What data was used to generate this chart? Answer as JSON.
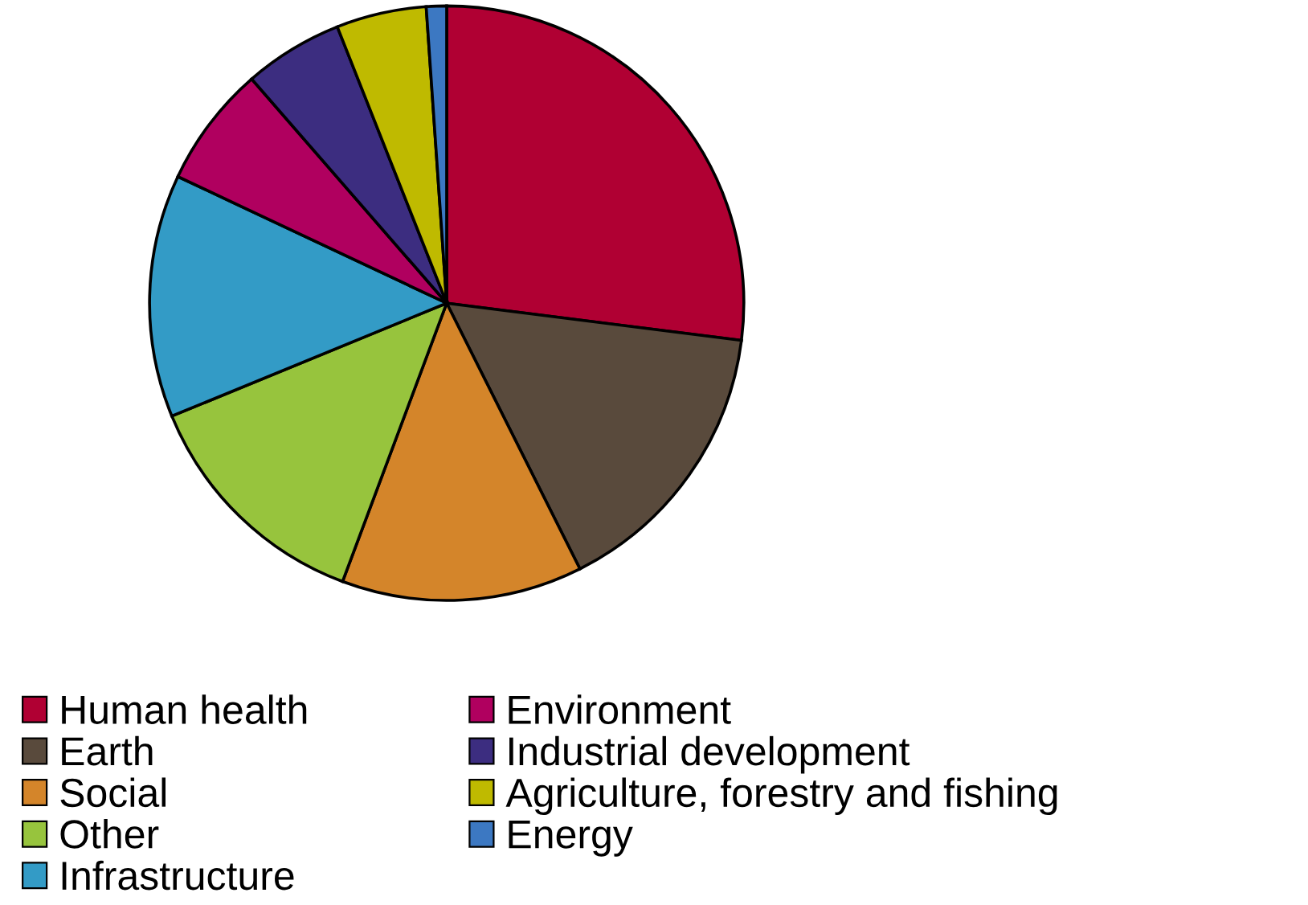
{
  "chart_data": {
    "type": "pie",
    "categories": [
      "Human health",
      "Earth",
      "Social",
      "Other",
      "Infrastructure",
      "Environment",
      "Industrial development",
      "Agriculture, forestry and fishing",
      "Energy"
    ],
    "values": [
      27,
      15.6,
      13.1,
      13.1,
      13.2,
      6.6,
      5.4,
      4.9,
      1.1
    ],
    "colors": [
      "#b00033",
      "#594a3c",
      "#d4852a",
      "#97c43d",
      "#339bc6",
      "#b0005f",
      "#3c2d80",
      "#bfba00",
      "#3c78c2"
    ],
    "legend": "bottom"
  }
}
